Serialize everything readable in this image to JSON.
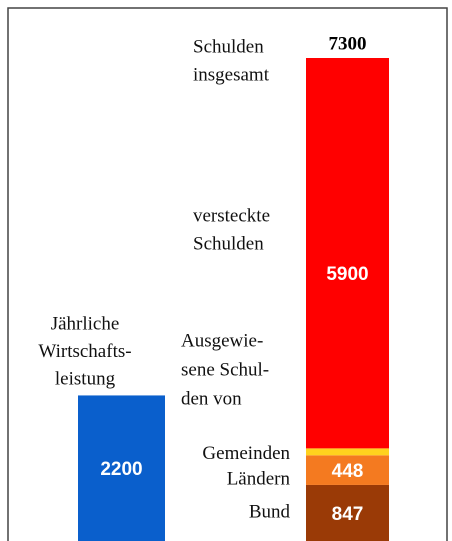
{
  "chart_data": {
    "type": "stacked-bar",
    "categories": [
      [
        "Jährliche",
        "Wirtschafts-",
        "leistung"
      ],
      [
        "Schulden",
        "insgesamt"
      ]
    ],
    "series": [
      {
        "color": "#0a5fcc",
        "values": [
          2200,
          null
        ]
      },
      {
        "name": "Bund",
        "color": "#9a3a06",
        "values": [
          null,
          847
        ]
      },
      {
        "name": "Ländern",
        "color": "#f47a20",
        "values": [
          null,
          448
        ]
      },
      {
        "name": "Gemeinden",
        "color": "#ffd21e",
        "values": [
          null,
          105
        ]
      },
      {
        "name": [
          "versteckte",
          "Schulden"
        ],
        "color": "#ff0000",
        "values": [
          null,
          5900
        ]
      }
    ],
    "totals": [
      null,
      7300
    ],
    "annotation": [
      "Ausgewie-",
      "sene Schul-",
      "den von"
    ],
    "ylim": [
      0,
      7300
    ]
  }
}
